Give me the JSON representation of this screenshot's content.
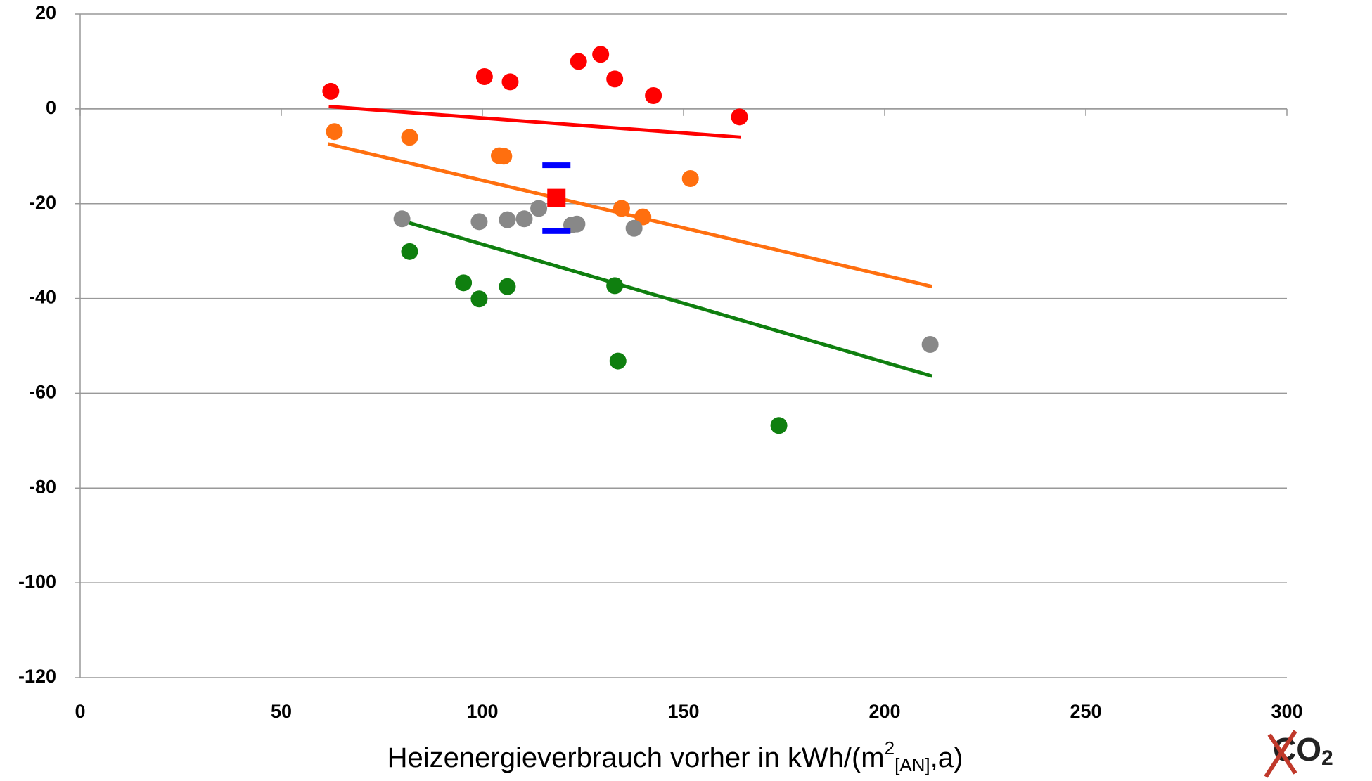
{
  "chart_data": {
    "type": "scatter",
    "xlabel": [
      "Heizenergieverbrauch vorher in kWh/(m",
      "2",
      "[AN]",
      ",a)"
    ],
    "logo": [
      "CO",
      "2"
    ],
    "xlim": [
      0,
      300
    ],
    "xticks": [
      0,
      50,
      100,
      150,
      200,
      250,
      300
    ],
    "ylim": [
      -120,
      20
    ],
    "yticks": [
      -120,
      -100,
      -80,
      -60,
      -40,
      -20,
      0,
      20
    ],
    "grid": true,
    "series": [
      {
        "color": "#ff0000",
        "x": [
          62.3,
          100.5,
          106.9,
          123.9,
          129.4,
          132.9,
          142.5,
          163.9
        ],
        "y": [
          3.7,
          6.8,
          5.7,
          10.0,
          11.5,
          6.3,
          2.8,
          -1.7
        ]
      },
      {
        "color": "#ff6f0f",
        "x": [
          63.2,
          81.9,
          104.2,
          105.3,
          151.7,
          134.6,
          139.9
        ],
        "y": [
          -4.8,
          -6.0,
          -9.9,
          -10.0,
          -14.7,
          -21.0,
          -22.8
        ]
      },
      {
        "color": "#888888",
        "x": [
          80.0,
          99.2,
          106.2,
          110.4,
          114.0,
          122.2,
          123.5,
          137.7,
          211.3
        ],
        "y": [
          -23.2,
          -23.8,
          -23.4,
          -23.2,
          -21.0,
          -24.5,
          -24.3,
          -25.2,
          -49.7
        ]
      },
      {
        "color": "#0f7f0f",
        "x": [
          81.9,
          95.3,
          99.2,
          106.2,
          132.9,
          133.7,
          173.7
        ],
        "y": [
          -30.1,
          -36.7,
          -40.1,
          -37.5,
          -37.3,
          -53.2,
          -66.8
        ]
      }
    ],
    "trendlines": [
      {
        "color": "#ff0000",
        "x": [
          61.8,
          164.3
        ],
        "y": [
          0.5,
          -6.0
        ]
      },
      {
        "color": "#ff6f0f",
        "x": [
          61.6,
          211.8
        ],
        "y": [
          -7.4,
          -37.5
        ]
      },
      {
        "color": "#0f7f0f",
        "x": [
          80.0,
          211.8
        ],
        "y": [
          -23.6,
          -56.4
        ]
      }
    ],
    "mean": {
      "x": 118.4,
      "y": -18.8,
      "upper": -11.9,
      "lower": -25.8,
      "color": "#ff0000",
      "range_color": "#0000ff"
    }
  }
}
